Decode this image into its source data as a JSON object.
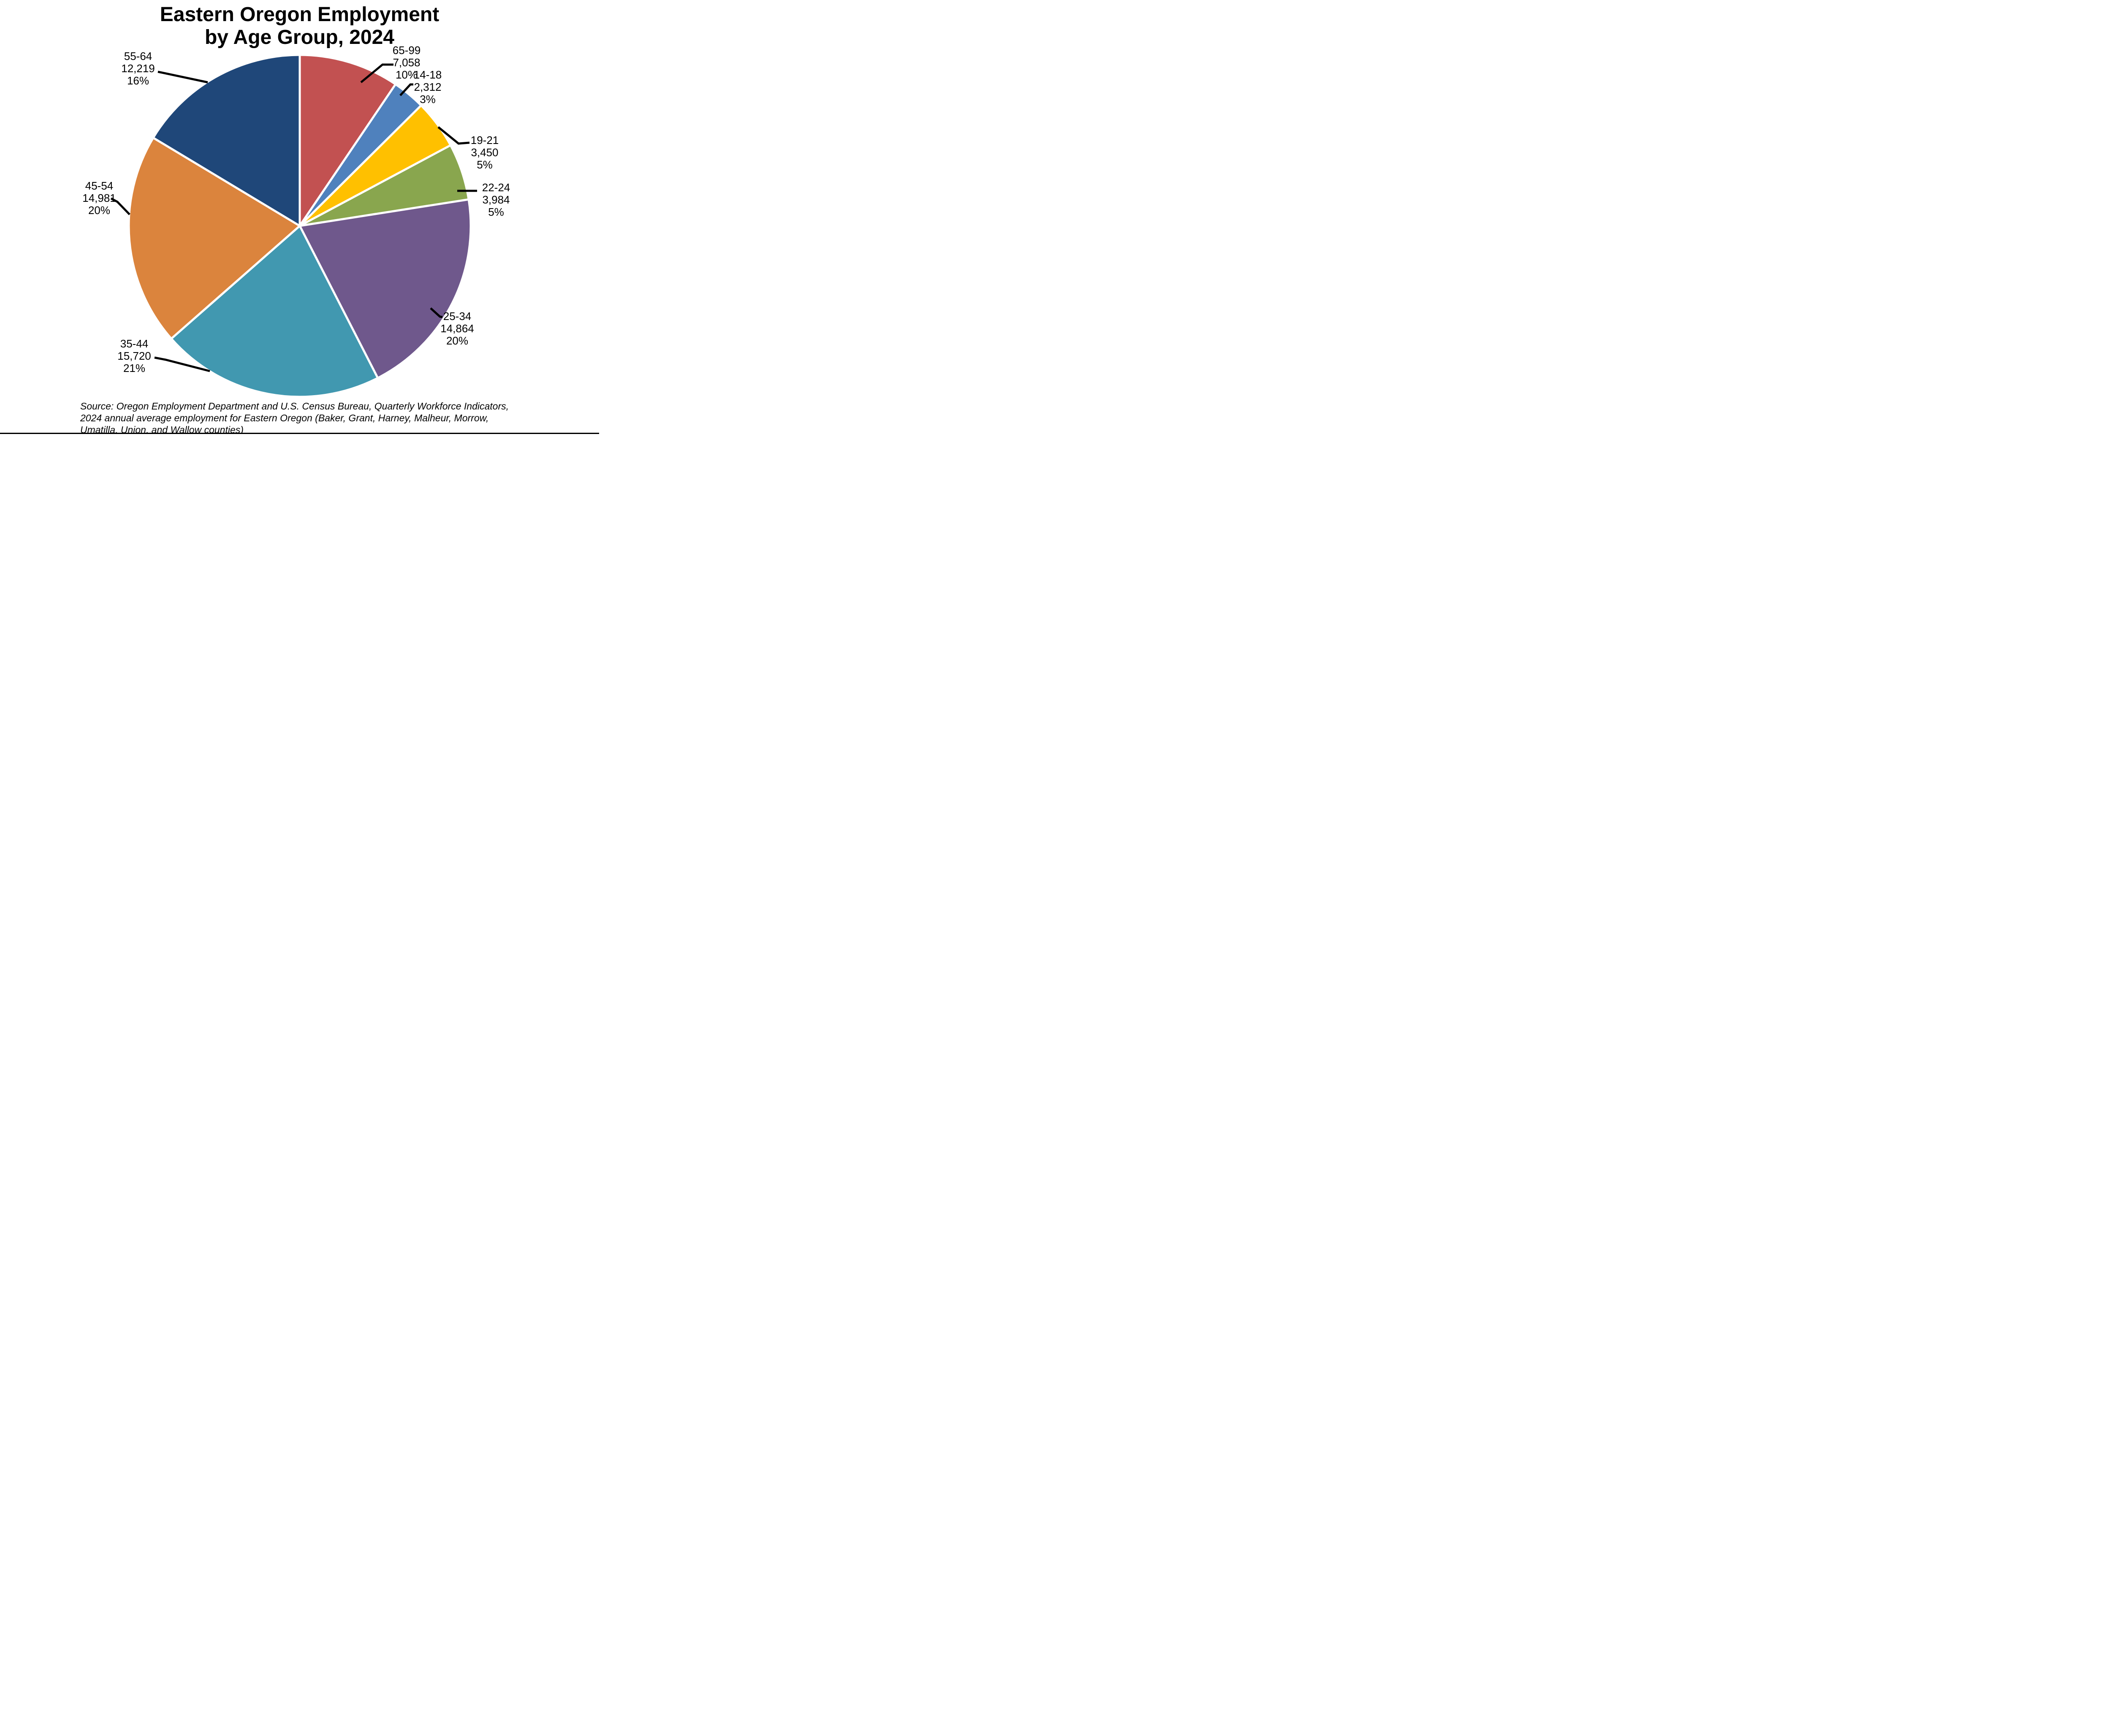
{
  "title": {
    "line1": "Eastern Oregon Employment",
    "line2": "by Age Group, 2024"
  },
  "chart_data": {
    "type": "pie",
    "title": "Eastern Oregon Employment by Age Group, 2024",
    "legend": "none",
    "label_style": "outside labels with black leader lines, three lines each: age group, value, percent",
    "start_angle_deg": 0,
    "direction": "clockwise",
    "total": 74588,
    "slices": [
      {
        "label": "65-99",
        "value": 7058,
        "display_value": "7,058",
        "percent_label": "10%",
        "color": "#C25151"
      },
      {
        "label": "14-18",
        "value": 2312,
        "display_value": "2,312",
        "percent_label": "3%",
        "color": "#4F81BD"
      },
      {
        "label": "19-21",
        "value": 3450,
        "display_value": "3,450",
        "percent_label": "5%",
        "color": "#FFC000"
      },
      {
        "label": "22-24",
        "value": 3984,
        "display_value": "3,984",
        "percent_label": "5%",
        "color": "#89A64E"
      },
      {
        "label": "25-34",
        "value": 14864,
        "display_value": "14,864",
        "percent_label": "20%",
        "color": "#6F588C"
      },
      {
        "label": "35-44",
        "value": 15720,
        "display_value": "15,720",
        "percent_label": "21%",
        "color": "#4198B0"
      },
      {
        "label": "45-54",
        "value": 14981,
        "display_value": "14,981",
        "percent_label": "20%",
        "color": "#DB843D"
      },
      {
        "label": "55-64",
        "value": 12219,
        "display_value": "12,219",
        "percent_label": "16%",
        "color": "#1F4779"
      }
    ],
    "slice_border_color": "#FFFFFF",
    "leader_line_color": "#000000"
  },
  "source": {
    "line1": "Source: Oregon Employment Department and U.S. Census Bureau, Quarterly Workforce Indicators,",
    "line2": "2024 annual average employment for Eastern Oregon (Baker, Grant, Harney, Malheur, Morrow,",
    "line3": "Umatilla, Union, and Wallow counties)"
  }
}
